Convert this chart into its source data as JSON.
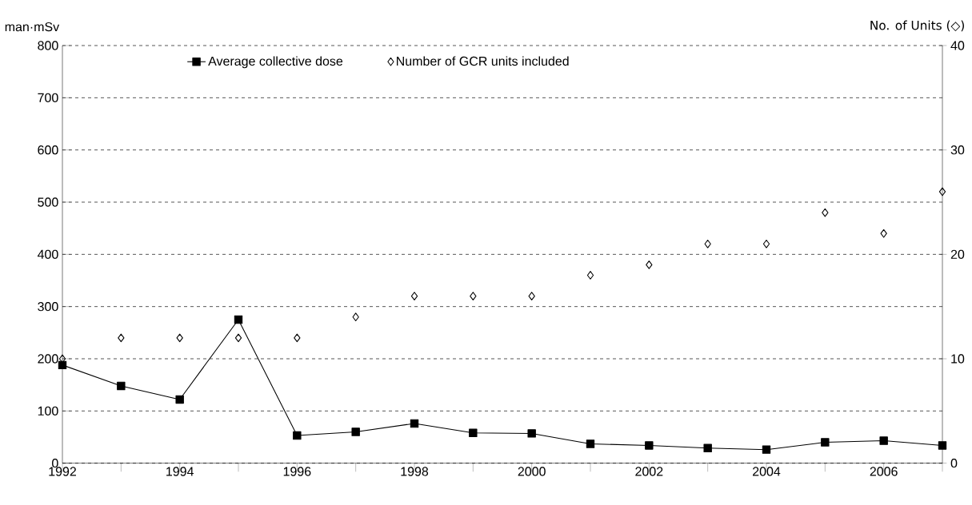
{
  "chart_data": {
    "type": "line",
    "ylabel": "man·mSv",
    "y2label": "No. of Units (◇)",
    "x": [
      1992,
      1993,
      1994,
      1995,
      1996,
      1997,
      1998,
      1999,
      2000,
      2001,
      2002,
      2003,
      2004,
      2005,
      2006,
      2007
    ],
    "series": [
      {
        "name": "Average collective dose",
        "color": "#000000",
        "type": "line",
        "marker": "square",
        "line_style": "solid",
        "values": [
          188,
          148,
          122,
          275,
          53,
          60,
          76,
          58,
          57,
          37,
          34,
          29,
          26,
          40,
          43,
          34
        ]
      },
      {
        "name": "Number of GCR units included",
        "color": "#000000",
        "type": "scatter",
        "marker": "diamond",
        "axis": "y2",
        "values": [
          10,
          12,
          12,
          12,
          12,
          14,
          16,
          16,
          16,
          18,
          19,
          21,
          21,
          24,
          22,
          26
        ]
      }
    ],
    "xlim": [
      1992,
      2007
    ],
    "xticks": [
      1992,
      {
        "value": 1993,
        "label": null
      },
      1994,
      {
        "value": 1995,
        "label": null
      },
      1996,
      {
        "value": 1997,
        "label": null
      },
      1998,
      {
        "value": 1999,
        "label": null
      },
      2000,
      {
        "value": 2001,
        "label": null
      },
      2002,
      {
        "value": 2003,
        "label": null
      },
      2004,
      {
        "value": 2005,
        "label": null
      },
      2006,
      {
        "value": 2007,
        "label": null
      }
    ],
    "ylim": [
      0,
      800
    ],
    "yticks": [
      0,
      100,
      200,
      300,
      400,
      500,
      600,
      700,
      800
    ],
    "y2lim": [
      0,
      40
    ],
    "y2ticks": [
      0,
      10,
      20,
      30,
      40
    ],
    "grid": "y",
    "legend": "top"
  }
}
